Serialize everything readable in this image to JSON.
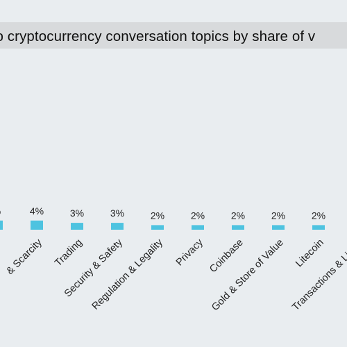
{
  "chart_data": {
    "type": "bar",
    "title": "Top cryptocurrency conversation topics by share of voice",
    "title_visible": "op cryptocurrency conversation topics by share of v",
    "categories": [
      "",
      "& Scarcity",
      "Trading",
      "Security & Safety",
      "Regulation & Legality",
      "Privacy",
      "Coinbase",
      "Gold & Store of Value",
      "Litecoin",
      "Transactions & Liquid"
    ],
    "values": [
      4,
      4,
      3,
      3,
      2,
      2,
      2,
      2,
      2,
      0
    ],
    "data_labels": [
      "%",
      "4%",
      "3%",
      "3%",
      "2%",
      "2%",
      "2%",
      "2%",
      "2%",
      ""
    ],
    "bar_color": "#4ec3e0",
    "grid": false,
    "legend": "none"
  }
}
